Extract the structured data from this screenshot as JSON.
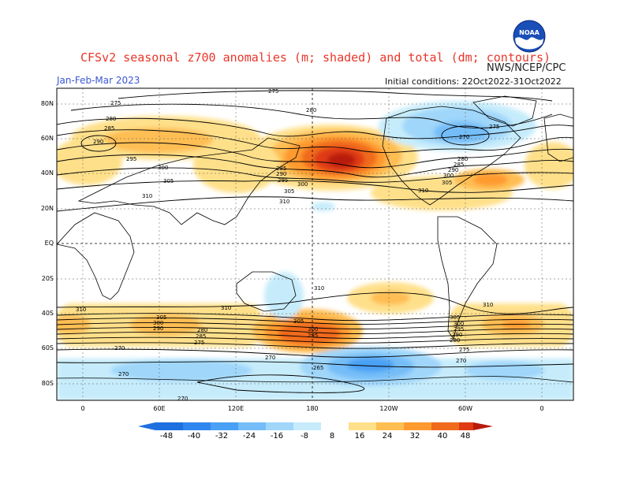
{
  "header": {
    "title": "CFSv2 seasonal z700 anomalies (m; shaded) and total (dm; contours)",
    "agency": "NWS/NCEP/CPC",
    "period": "Jan-Feb-Mar 2023",
    "init": "Initial conditions: 22Oct2022-31Oct2022",
    "logo_text": "NOAA"
  },
  "axes": {
    "lat_labels": [
      "80N",
      "60N",
      "40N",
      "20N",
      "EQ",
      "20S",
      "40S",
      "60S",
      "80S"
    ],
    "lon_labels": [
      "0",
      "60E",
      "120E",
      "180",
      "120W",
      "60W",
      "0"
    ]
  },
  "colorbar": {
    "labels": [
      "-48",
      "-40",
      "-32",
      "-24",
      "-16",
      "-8",
      "8",
      "16",
      "24",
      "32",
      "40",
      "48"
    ],
    "colors": [
      "#1e6fe0",
      "#2f86ee",
      "#4aa0f4",
      "#74bdf8",
      "#9fd6fa",
      "#c6ecfb",
      "#ffffff",
      "#ffe08a",
      "#ffbe52",
      "#ff9a2e",
      "#f06a1e",
      "#e03a14",
      "#b81a0c"
    ]
  },
  "contour_labels": [
    "275",
    "280",
    "285",
    "290",
    "295",
    "300",
    "305",
    "310",
    "270",
    "265"
  ]
}
